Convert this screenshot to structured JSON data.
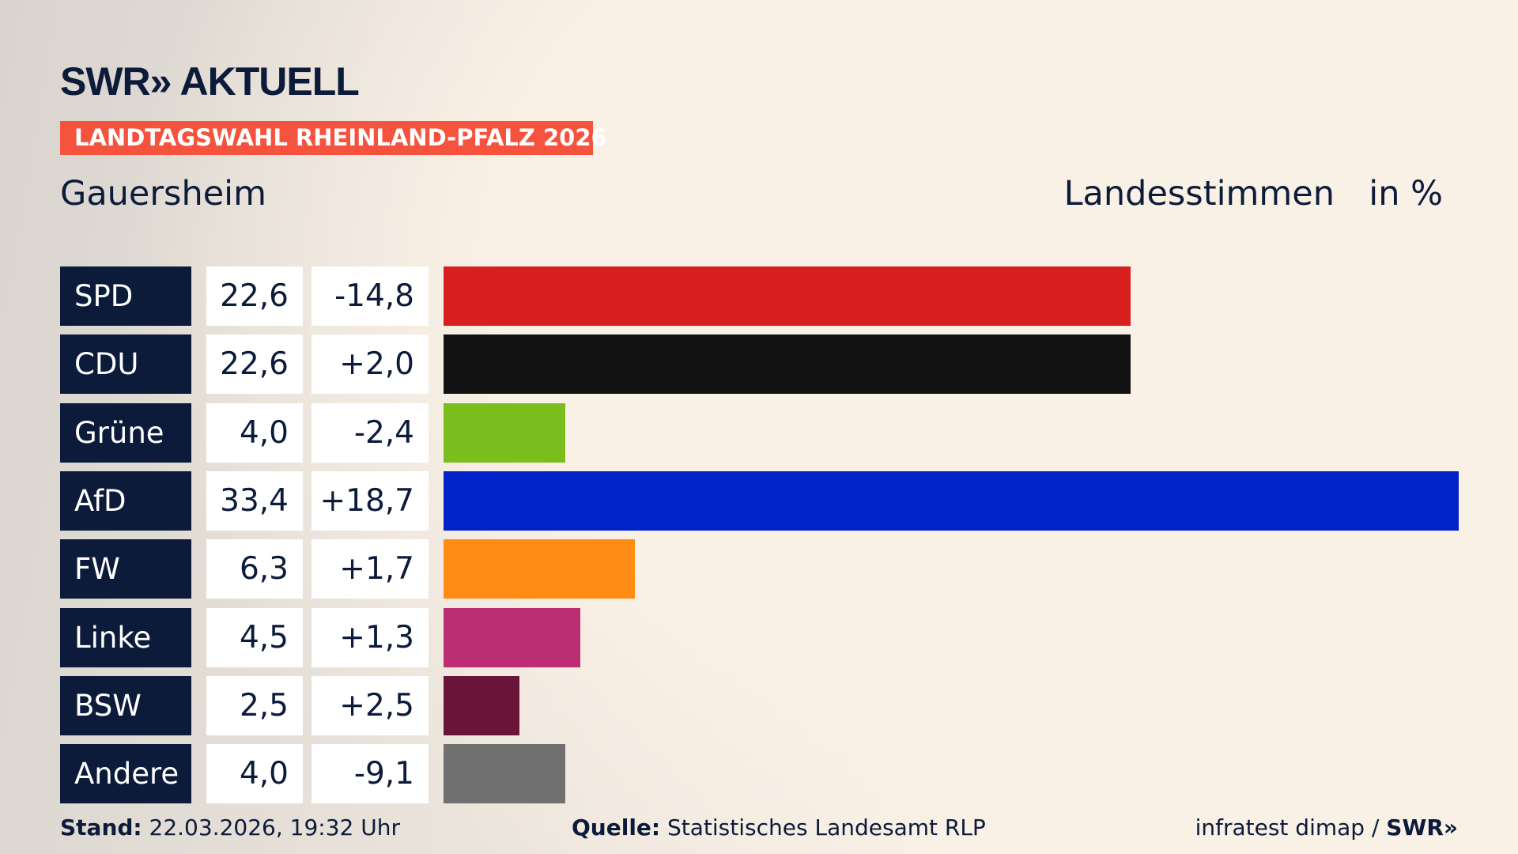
{
  "header": {
    "logo": "SWR» AKTUELL",
    "banner": "LANDTAGSWAHL RHEINLAND-PFALZ 2026",
    "place": "Gauersheim",
    "metric": "Landesstimmen",
    "unit": "in %"
  },
  "chart_data": {
    "type": "bar",
    "title": "Landesstimmen",
    "ylabel": "in %",
    "xlim": [
      0,
      33.4
    ],
    "categories": [
      "SPD",
      "CDU",
      "Grüne",
      "AfD",
      "FW",
      "Linke",
      "BSW",
      "Andere"
    ],
    "values": [
      22.6,
      22.6,
      4.0,
      33.4,
      6.3,
      4.5,
      2.5,
      4.0
    ],
    "value_labels": [
      "22,6",
      "22,6",
      "4,0",
      "33,4",
      "6,3",
      "4,5",
      "2,5",
      "4,0"
    ],
    "diff_labels": [
      "-14,8",
      "+2,0",
      "-2,4",
      "+18,7",
      "+1,7",
      "+1,3",
      "+2,5",
      "-9,1"
    ],
    "colors": [
      "#d81f20",
      "#121212",
      "#7abe1e",
      "#0022c9",
      "#ff8c14",
      "#bb2e74",
      "#6a1439",
      "#707070"
    ]
  },
  "footer": {
    "stand_label": "Stand:",
    "stand": "22.03.2026, 19:32 Uhr",
    "source_label": "Quelle:",
    "source": "Statistisches Landesamt RLP",
    "credit": "infratest dimap / ",
    "credit_logo": "SWR»"
  }
}
